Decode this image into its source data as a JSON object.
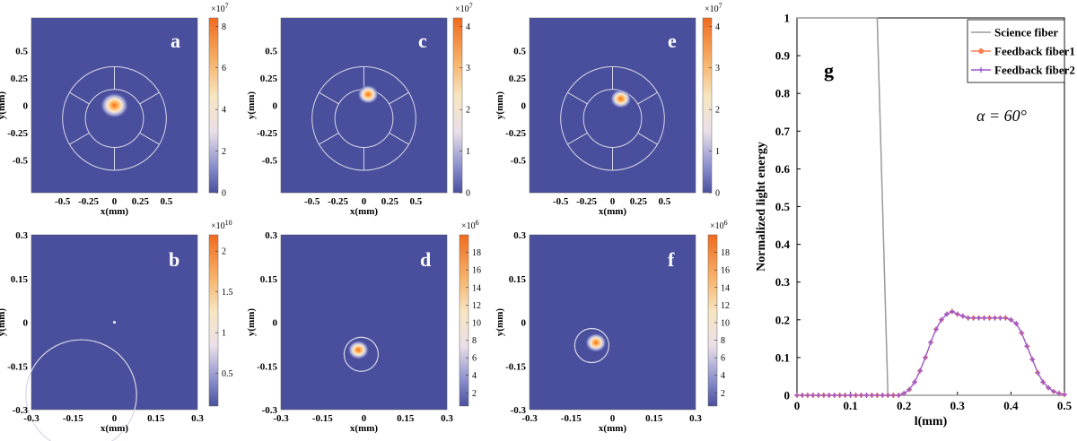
{
  "colors": {
    "background_field": "#4a4f9d",
    "ring": "#d6d6e6",
    "science": "#9a9a9a",
    "feedback1": "#ff7f50",
    "feedback2": "#9b59d0"
  },
  "chart_data": [
    {
      "panel": "a",
      "type": "heatmap",
      "xlabel": "x(mm)",
      "ylabel": "y(mm)",
      "xticks": [
        "-0.5",
        "-0.25",
        "0",
        "0.25",
        "0.5"
      ],
      "yticks": [
        "0.5",
        "0.25",
        "0",
        "-0.25",
        "-0.5"
      ],
      "xlim": [
        -0.8,
        0.8
      ],
      "ylim": [
        -0.8,
        0.8
      ],
      "colorbar": {
        "exponent": "×10",
        "exponent_power": "7",
        "ticks": [
          "8",
          "6",
          "4",
          "2",
          "0"
        ],
        "range": [
          0,
          8.4
        ]
      },
      "spot": {
        "x": 0,
        "y": 0,
        "peak": 8.4
      }
    },
    {
      "panel": "c",
      "type": "heatmap",
      "xlabel": "x(mm)",
      "ylabel": "y(mm)",
      "xticks": [
        "-0.5",
        "-0.25",
        "0",
        "0.25",
        "0.5"
      ],
      "yticks": [
        "0.5",
        "0.25",
        "0",
        "-0.25",
        "-0.5"
      ],
      "xlim": [
        -0.8,
        0.8
      ],
      "ylim": [
        -0.8,
        0.8
      ],
      "colorbar": {
        "exponent": "×10",
        "exponent_power": "7",
        "ticks": [
          "4",
          "3",
          "2",
          "1",
          "0"
        ],
        "range": [
          0,
          4.2
        ]
      },
      "spot": {
        "x": 0.04,
        "y": 0.1,
        "peak": 4.2
      }
    },
    {
      "panel": "e",
      "type": "heatmap",
      "xlabel": "x(mm)",
      "ylabel": "y(mm)",
      "xticks": [
        "-0.5",
        "-0.25",
        "0",
        "0.25",
        "0.5"
      ],
      "yticks": [
        "0.5",
        "0.25",
        "0",
        "-0.25",
        "-0.5"
      ],
      "xlim": [
        -0.8,
        0.8
      ],
      "ylim": [
        -0.8,
        0.8
      ],
      "colorbar": {
        "exponent": "×10",
        "exponent_power": "7",
        "ticks": [
          "4",
          "3",
          "2",
          "1",
          "0"
        ],
        "range": [
          0,
          4.2
        ]
      },
      "spot": {
        "x": 0.08,
        "y": 0.06,
        "peak": 4.2
      }
    },
    {
      "panel": "b",
      "type": "heatmap",
      "xlabel": "x(mm)",
      "ylabel": "y(mm)",
      "xticks": [
        "-0.3",
        "-0.15",
        "0",
        "0.15",
        "0.3"
      ],
      "yticks": [
        "0.3",
        "0.15",
        "0",
        "-0.15",
        "-0.3"
      ],
      "xlim": [
        -0.3,
        0.3
      ],
      "ylim": [
        -0.3,
        0.3
      ],
      "colorbar": {
        "exponent": "×10",
        "exponent_power": "10",
        "ticks": [
          "2",
          "1.5",
          "1",
          "0.5"
        ],
        "range": [
          0.1,
          2.2
        ]
      },
      "spot": {
        "x": 0,
        "y": 0,
        "peak": 2.2
      }
    },
    {
      "panel": "d",
      "type": "heatmap",
      "xlabel": "x(mm)",
      "ylabel": "y(mm)",
      "xticks": [
        "-0.3",
        "-0.15",
        "0",
        "0.15",
        "0.3"
      ],
      "yticks": [
        "0.3",
        "0.15",
        "0",
        "-0.15",
        "-0.3"
      ],
      "xlim": [
        -0.3,
        0.3
      ],
      "ylim": [
        -0.3,
        0.3
      ],
      "colorbar": {
        "exponent": "×10",
        "exponent_power": "6",
        "ticks": [
          "18",
          "16",
          "14",
          "12",
          "10",
          "8",
          "6",
          "4",
          "2"
        ],
        "range": [
          0.5,
          20
        ]
      },
      "spot": {
        "x": -0.02,
        "y": -0.095,
        "peak": 20
      }
    },
    {
      "panel": "f",
      "type": "heatmap",
      "xlabel": "x(mm)",
      "ylabel": "y(mm)",
      "xticks": [
        "-0.3",
        "-0.15",
        "0",
        "0.15",
        "0.3"
      ],
      "yticks": [
        "0.3",
        "0.15",
        "0",
        "-0.15",
        "-0.3"
      ],
      "xlim": [
        -0.3,
        0.3
      ],
      "ylim": [
        -0.3,
        0.3
      ],
      "colorbar": {
        "exponent": "×10",
        "exponent_power": "6",
        "ticks": [
          "18",
          "16",
          "14",
          "12",
          "10",
          "8",
          "6",
          "4",
          "2"
        ],
        "range": [
          0.5,
          20
        ]
      },
      "spot": {
        "x": -0.06,
        "y": -0.07,
        "peak": 20
      }
    },
    {
      "panel": "g",
      "type": "line",
      "xlabel": "l(mm)",
      "ylabel": "Normalized light energy",
      "annotation": "α = 60°",
      "xlim": [
        0,
        0.5
      ],
      "ylim": [
        0,
        1
      ],
      "xticks": [
        "0",
        "0.1",
        "0.2",
        "0.3",
        "0.4",
        "0.5"
      ],
      "yticks": [
        "0",
        "0.1",
        "0.2",
        "0.3",
        "0.4",
        "0.5",
        "0.6",
        "0.7",
        "0.8",
        "0.9",
        "1"
      ],
      "legend_position": "top-right",
      "series": [
        {
          "name": "Science fiber",
          "x": [
            0,
            0.15,
            0.17,
            0.5
          ],
          "y": [
            1.0,
            1.0,
            0.0,
            0.0
          ]
        },
        {
          "name": "Feedback fiber1",
          "x": [
            0,
            0.01,
            0.02,
            0.03,
            0.04,
            0.05,
            0.06,
            0.07,
            0.08,
            0.09,
            0.1,
            0.11,
            0.12,
            0.13,
            0.14,
            0.15,
            0.16,
            0.17,
            0.18,
            0.19,
            0.2,
            0.21,
            0.22,
            0.23,
            0.24,
            0.25,
            0.26,
            0.27,
            0.28,
            0.29,
            0.3,
            0.31,
            0.32,
            0.33,
            0.34,
            0.35,
            0.36,
            0.37,
            0.38,
            0.39,
            0.4,
            0.41,
            0.42,
            0.43,
            0.44,
            0.45,
            0.46,
            0.47,
            0.48,
            0.49,
            0.5
          ],
          "y": [
            0,
            0,
            0,
            0,
            0,
            0,
            0,
            0,
            0,
            0,
            0,
            0,
            0,
            0,
            0,
            0,
            0,
            0,
            0,
            0,
            0.005,
            0.015,
            0.035,
            0.065,
            0.1,
            0.14,
            0.175,
            0.2,
            0.215,
            0.222,
            0.215,
            0.21,
            0.205,
            0.205,
            0.205,
            0.205,
            0.205,
            0.205,
            0.205,
            0.205,
            0.2,
            0.19,
            0.165,
            0.13,
            0.095,
            0.06,
            0.035,
            0.02,
            0.01,
            0.005,
            0.002
          ]
        },
        {
          "name": "Feedback fiber2",
          "x": [
            0,
            0.01,
            0.02,
            0.03,
            0.04,
            0.05,
            0.06,
            0.07,
            0.08,
            0.09,
            0.1,
            0.11,
            0.12,
            0.13,
            0.14,
            0.15,
            0.16,
            0.17,
            0.18,
            0.19,
            0.2,
            0.21,
            0.22,
            0.23,
            0.24,
            0.25,
            0.26,
            0.27,
            0.28,
            0.29,
            0.3,
            0.31,
            0.32,
            0.33,
            0.34,
            0.35,
            0.36,
            0.37,
            0.38,
            0.39,
            0.4,
            0.41,
            0.42,
            0.43,
            0.44,
            0.45,
            0.46,
            0.47,
            0.48,
            0.49,
            0.5
          ],
          "y": [
            0,
            0,
            0,
            0,
            0,
            0,
            0,
            0,
            0,
            0,
            0,
            0,
            0,
            0,
            0,
            0,
            0,
            0,
            0,
            0,
            0.005,
            0.015,
            0.035,
            0.065,
            0.1,
            0.14,
            0.175,
            0.2,
            0.215,
            0.222,
            0.215,
            0.21,
            0.205,
            0.205,
            0.205,
            0.205,
            0.205,
            0.205,
            0.205,
            0.205,
            0.2,
            0.19,
            0.165,
            0.13,
            0.095,
            0.06,
            0.035,
            0.02,
            0.01,
            0.005,
            0.002
          ]
        }
      ]
    }
  ]
}
